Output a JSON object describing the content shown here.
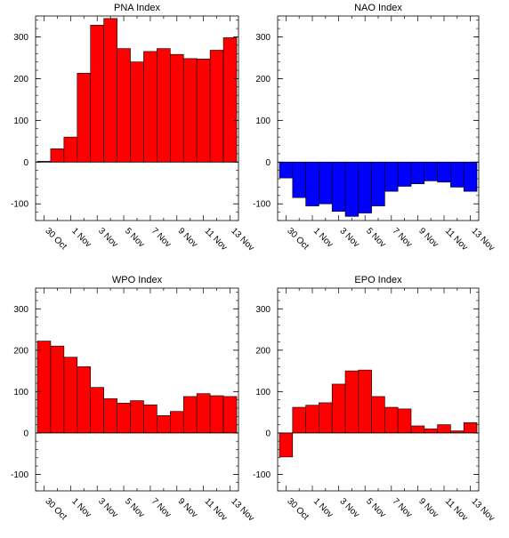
{
  "chart_data": [
    {
      "type": "bar",
      "title": "PNA Index",
      "categories": [
        "30 Oct",
        "31 Oct",
        "1 Nov",
        "2 Nov",
        "3 Nov",
        "4 Nov",
        "5 Nov",
        "6 Nov",
        "7 Nov",
        "8 Nov",
        "9 Nov",
        "10 Nov",
        "11 Nov",
        "12 Nov",
        "13 Nov"
      ],
      "values": [
        2,
        32,
        60,
        213,
        328,
        344,
        272,
        240,
        265,
        272,
        258,
        248,
        247,
        268,
        298
      ],
      "bar_color": "#ff0000",
      "x_tick_labels": [
        "30 Oct",
        "1 Nov",
        "3 Nov",
        "5 Nov",
        "7 Nov",
        "9 Nov",
        "11 Nov",
        "13 Nov"
      ],
      "y_tick_labels": [
        "-100",
        "0",
        "100",
        "200",
        "300"
      ],
      "ylim": [
        -140,
        350
      ]
    },
    {
      "type": "bar",
      "title": "NAO Index",
      "categories": [
        "30 Oct",
        "31 Oct",
        "1 Nov",
        "2 Nov",
        "3 Nov",
        "4 Nov",
        "5 Nov",
        "6 Nov",
        "7 Nov",
        "8 Nov",
        "9 Nov",
        "10 Nov",
        "11 Nov",
        "12 Nov",
        "13 Nov"
      ],
      "values": [
        -38,
        -85,
        -105,
        -100,
        -118,
        -130,
        -122,
        -105,
        -70,
        -58,
        -52,
        -45,
        -48,
        -60,
        -70
      ],
      "bar_color": "#0000ff",
      "x_tick_labels": [
        "30 Oct",
        "1 Nov",
        "3 Nov",
        "5 Nov",
        "7 Nov",
        "9 Nov",
        "11 Nov",
        "13 Nov"
      ],
      "y_tick_labels": [
        "-100",
        "0",
        "100",
        "200",
        "300"
      ],
      "ylim": [
        -140,
        350
      ]
    },
    {
      "type": "bar",
      "title": "WPO Index",
      "categories": [
        "30 Oct",
        "31 Oct",
        "1 Nov",
        "2 Nov",
        "3 Nov",
        "4 Nov",
        "5 Nov",
        "6 Nov",
        "7 Nov",
        "8 Nov",
        "9 Nov",
        "10 Nov",
        "11 Nov",
        "12 Nov",
        "13 Nov"
      ],
      "values": [
        222,
        210,
        183,
        160,
        110,
        83,
        72,
        78,
        68,
        42,
        52,
        88,
        95,
        90,
        88
      ],
      "bar_color": "#ff0000",
      "x_tick_labels": [
        "30 Oct",
        "1 Nov",
        "3 Nov",
        "5 Nov",
        "7 Nov",
        "9 Nov",
        "11 Nov",
        "13 Nov"
      ],
      "y_tick_labels": [
        "-100",
        "0",
        "100",
        "200",
        "300"
      ],
      "ylim": [
        -140,
        350
      ]
    },
    {
      "type": "bar",
      "title": "EPO Index",
      "categories": [
        "30 Oct",
        "31 Oct",
        "1 Nov",
        "2 Nov",
        "3 Nov",
        "4 Nov",
        "5 Nov",
        "6 Nov",
        "7 Nov",
        "8 Nov",
        "9 Nov",
        "10 Nov",
        "11 Nov",
        "12 Nov",
        "13 Nov"
      ],
      "values": [
        -58,
        62,
        67,
        73,
        118,
        150,
        152,
        88,
        62,
        58,
        17,
        10,
        20,
        5,
        25
      ],
      "bar_color": "#ff0000",
      "x_tick_labels": [
        "30 Oct",
        "1 Nov",
        "3 Nov",
        "5 Nov",
        "7 Nov",
        "9 Nov",
        "11 Nov",
        "13 Nov"
      ],
      "y_tick_labels": [
        "-100",
        "0",
        "100",
        "200",
        "300"
      ],
      "ylim": [
        -140,
        350
      ]
    }
  ]
}
